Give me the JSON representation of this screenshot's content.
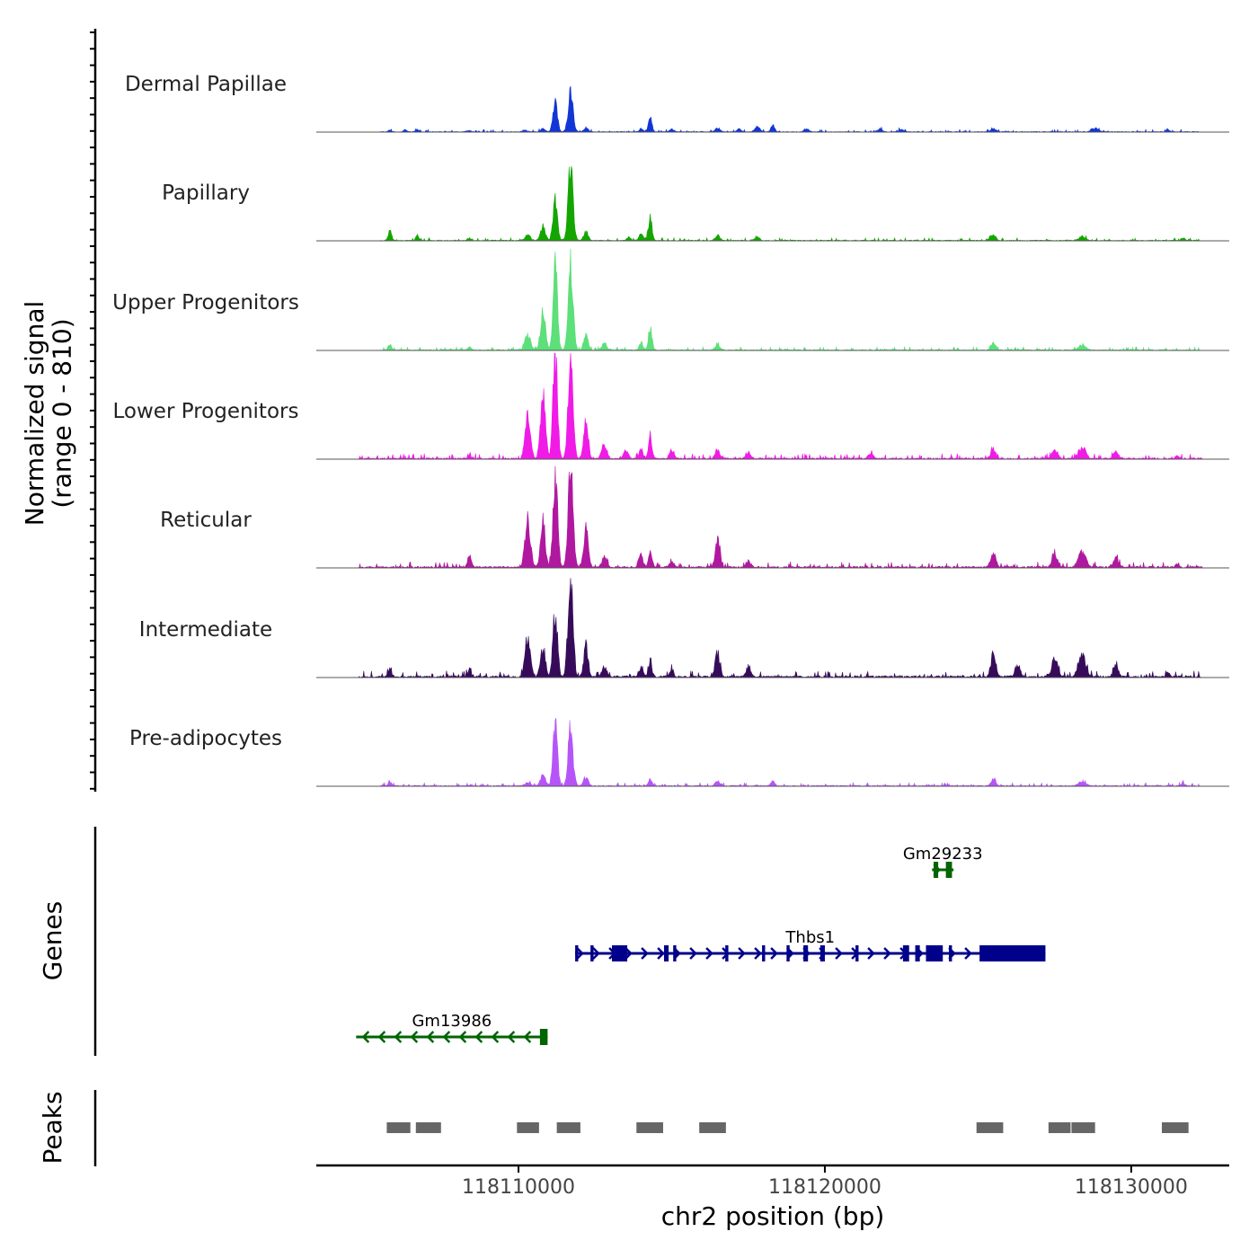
{
  "chart_data": {
    "type": "area",
    "title": "",
    "coverage": {
      "ylabel": "Normalized signal\n(range 0 - 810)",
      "ylim": [
        0,
        810
      ],
      "xlim": [
        118103400,
        118133200
      ],
      "tracks": [
        {
          "name": "Dermal Papillae",
          "color": "#1236D6",
          "scale": 0.68,
          "noise_from": 118105500,
          "noise_to": 118132200,
          "noise_amp": 12,
          "peaks": [
            [
              118105800,
              18,
              80
            ],
            [
              118106300,
              20,
              70
            ],
            [
              118106700,
              22,
              70
            ],
            [
              118108400,
              12,
              80
            ],
            [
              118110200,
              18,
              90
            ],
            [
              118110800,
              30,
              110
            ],
            [
              118111200,
              300,
              100
            ],
            [
              118111700,
              390,
              110
            ],
            [
              118112200,
              40,
              100
            ],
            [
              118114000,
              30,
              90
            ],
            [
              118114300,
              140,
              80
            ],
            [
              118115000,
              25,
              100
            ],
            [
              118116500,
              40,
              110
            ],
            [
              118117200,
              30,
              90
            ],
            [
              118117800,
              50,
              110
            ],
            [
              118118300,
              70,
              80
            ],
            [
              118119400,
              30,
              110
            ],
            [
              118121800,
              30,
              110
            ],
            [
              118122500,
              25,
              110
            ],
            [
              118125500,
              30,
              110
            ],
            [
              118128800,
              40,
              150
            ],
            [
              118131200,
              20,
              80
            ]
          ]
        },
        {
          "name": "Papillary",
          "color": "#14A500",
          "scale": 0.8,
          "noise_from": 118105500,
          "noise_to": 118132200,
          "noise_amp": 12,
          "peaks": [
            [
              118105800,
              80,
              80
            ],
            [
              118106700,
              50,
              70
            ],
            [
              118108400,
              20,
              80
            ],
            [
              118110300,
              50,
              120
            ],
            [
              118110800,
              120,
              110
            ],
            [
              118111200,
              330,
              100
            ],
            [
              118111700,
              640,
              110
            ],
            [
              118112200,
              80,
              100
            ],
            [
              118113600,
              30,
              90
            ],
            [
              118114000,
              60,
              90
            ],
            [
              118114300,
              200,
              80
            ],
            [
              118116500,
              40,
              110
            ],
            [
              118117800,
              30,
              110
            ],
            [
              118125500,
              50,
              110
            ],
            [
              118128400,
              30,
              160
            ],
            [
              118131700,
              20,
              80
            ]
          ]
        },
        {
          "name": "Upper Progenitors",
          "color": "#5DDF79",
          "scale": 0.92,
          "noise_from": 118105500,
          "noise_to": 118132200,
          "noise_amp": 12,
          "peaks": [
            [
              118105800,
              40,
              80
            ],
            [
              118108400,
              20,
              80
            ],
            [
              118110300,
              120,
              120
            ],
            [
              118110800,
              300,
              110
            ],
            [
              118111200,
              620,
              100
            ],
            [
              118111700,
              690,
              110
            ],
            [
              118112200,
              120,
              100
            ],
            [
              118112800,
              50,
              110
            ],
            [
              118114000,
              50,
              90
            ],
            [
              118114300,
              170,
              80
            ],
            [
              118116500,
              40,
              110
            ],
            [
              118125500,
              50,
              110
            ],
            [
              118128400,
              40,
              160
            ]
          ]
        },
        {
          "name": "Lower Progenitors",
          "color": "#F01BE6",
          "scale": 1.0,
          "noise_from": 118104800,
          "noise_to": 118132300,
          "noise_amp": 18,
          "peaks": [
            [
              118108400,
              20,
              80
            ],
            [
              118110300,
              280,
              120
            ],
            [
              118110800,
              470,
              110
            ],
            [
              118111200,
              740,
              100
            ],
            [
              118111700,
              720,
              110
            ],
            [
              118112200,
              260,
              100
            ],
            [
              118112800,
              100,
              110
            ],
            [
              118113500,
              50,
              110
            ],
            [
              118114000,
              60,
              90
            ],
            [
              118114300,
              160,
              80
            ],
            [
              118115000,
              60,
              100
            ],
            [
              118116500,
              60,
              110
            ],
            [
              118117500,
              40,
              110
            ],
            [
              118121500,
              40,
              110
            ],
            [
              118125500,
              70,
              110
            ],
            [
              118127500,
              60,
              130
            ],
            [
              118128400,
              80,
              160
            ],
            [
              118129500,
              50,
              110
            ],
            [
              118131500,
              20,
              80
            ]
          ]
        },
        {
          "name": "Reticular",
          "color": "#B0189F",
          "scale": 1.0,
          "noise_from": 118104800,
          "noise_to": 118132300,
          "noise_amp": 20,
          "peaks": [
            [
              118108400,
              80,
              90
            ],
            [
              118110300,
              340,
              120
            ],
            [
              118110800,
              300,
              110
            ],
            [
              118111200,
              680,
              100
            ],
            [
              118111700,
              690,
              110
            ],
            [
              118112200,
              280,
              100
            ],
            [
              118112800,
              70,
              110
            ],
            [
              118114000,
              80,
              90
            ],
            [
              118114300,
              110,
              80
            ],
            [
              118115000,
              40,
              100
            ],
            [
              118116500,
              200,
              110
            ],
            [
              118117500,
              40,
              110
            ],
            [
              118125500,
              110,
              110
            ],
            [
              118127500,
              80,
              130
            ],
            [
              118128400,
              110,
              160
            ],
            [
              118129500,
              60,
              110
            ],
            [
              118131500,
              20,
              80
            ]
          ]
        },
        {
          "name": "Intermediate",
          "color": "#360C5A",
          "scale": 1.0,
          "noise_from": 118104800,
          "noise_to": 118132300,
          "noise_amp": 22,
          "peaks": [
            [
              118105800,
              50,
              80
            ],
            [
              118108400,
              50,
              90
            ],
            [
              118110300,
              270,
              120
            ],
            [
              118110800,
              200,
              110
            ],
            [
              118111200,
              470,
              100
            ],
            [
              118111700,
              750,
              110
            ],
            [
              118112200,
              200,
              100
            ],
            [
              118112800,
              70,
              110
            ],
            [
              118114000,
              60,
              90
            ],
            [
              118114300,
              100,
              80
            ],
            [
              118115000,
              40,
              100
            ],
            [
              118116500,
              160,
              110
            ],
            [
              118117500,
              70,
              110
            ],
            [
              118125500,
              170,
              110
            ],
            [
              118126300,
              80,
              110
            ],
            [
              118127500,
              120,
              130
            ],
            [
              118128400,
              160,
              160
            ],
            [
              118129500,
              80,
              110
            ],
            [
              118131200,
              30,
              80
            ]
          ]
        },
        {
          "name": "Pre-adipocytes",
          "color": "#B655F7",
          "scale": 0.8,
          "noise_from": 118105500,
          "noise_to": 118132200,
          "noise_amp": 14,
          "peaks": [
            [
              118105800,
              30,
              80
            ],
            [
              118110300,
              30,
              120
            ],
            [
              118110800,
              100,
              110
            ],
            [
              118111200,
              520,
              100
            ],
            [
              118111700,
              500,
              110
            ],
            [
              118112200,
              80,
              100
            ],
            [
              118114300,
              60,
              80
            ],
            [
              118116500,
              40,
              110
            ],
            [
              118118300,
              40,
              90
            ],
            [
              118125500,
              50,
              110
            ],
            [
              118128400,
              40,
              160
            ],
            [
              118131700,
              20,
              80
            ]
          ]
        }
      ]
    },
    "genes": {
      "ylabel": "Genes",
      "items": [
        {
          "name": "Gm29233",
          "color": "#006400",
          "strand": "+",
          "start": 118123500,
          "end": 118124200,
          "row": 0,
          "exons": [
            [
              118123550,
              118123700
            ],
            [
              118123950,
              118124150
            ]
          ]
        },
        {
          "name": "Thbs1",
          "color": "#00008B",
          "strand": "+",
          "start": 118111850,
          "end": 118127200,
          "row": 1,
          "exons": [
            [
              118111850,
              118111950
            ],
            [
              118112350,
              118112450
            ],
            [
              118113050,
              118113550
            ],
            [
              118114750,
              118114900
            ],
            [
              118115050,
              118115150
            ],
            [
              118116750,
              118116850
            ],
            [
              118117950,
              118118050
            ],
            [
              118118750,
              118118850
            ],
            [
              118119300,
              118119450
            ],
            [
              118119850,
              118120000
            ],
            [
              118121000,
              118121100
            ],
            [
              118122550,
              118122750
            ],
            [
              118122950,
              118123100
            ],
            [
              118123300,
              118123850
            ],
            [
              118124050,
              118124150
            ],
            [
              118125050,
              118127200
            ]
          ]
        },
        {
          "name": "Gm13986",
          "color": "#006400",
          "strand": "-",
          "start": 118104700,
          "end": 118110950,
          "row": 2,
          "exons": [
            [
              118110700,
              118110950
            ]
          ]
        }
      ]
    },
    "peaks": {
      "ylabel": "Peaks",
      "color": "#666666",
      "regions": [
        [
          118105700,
          118106500
        ],
        [
          118106650,
          118107500
        ],
        [
          118109950,
          118110700
        ],
        [
          118111250,
          118112050
        ],
        [
          118113850,
          118114750
        ],
        [
          118115900,
          118116800
        ],
        [
          118124950,
          118125850
        ],
        [
          118127300,
          118128050
        ],
        [
          118128050,
          118128850
        ],
        [
          118131000,
          118131900
        ]
      ]
    },
    "xaxis": {
      "label": "chr2 position (bp)",
      "ticks": [
        118110000,
        118120000,
        118130000
      ],
      "tick_labels": [
        "118110000",
        "118120000",
        "118130000"
      ]
    }
  }
}
